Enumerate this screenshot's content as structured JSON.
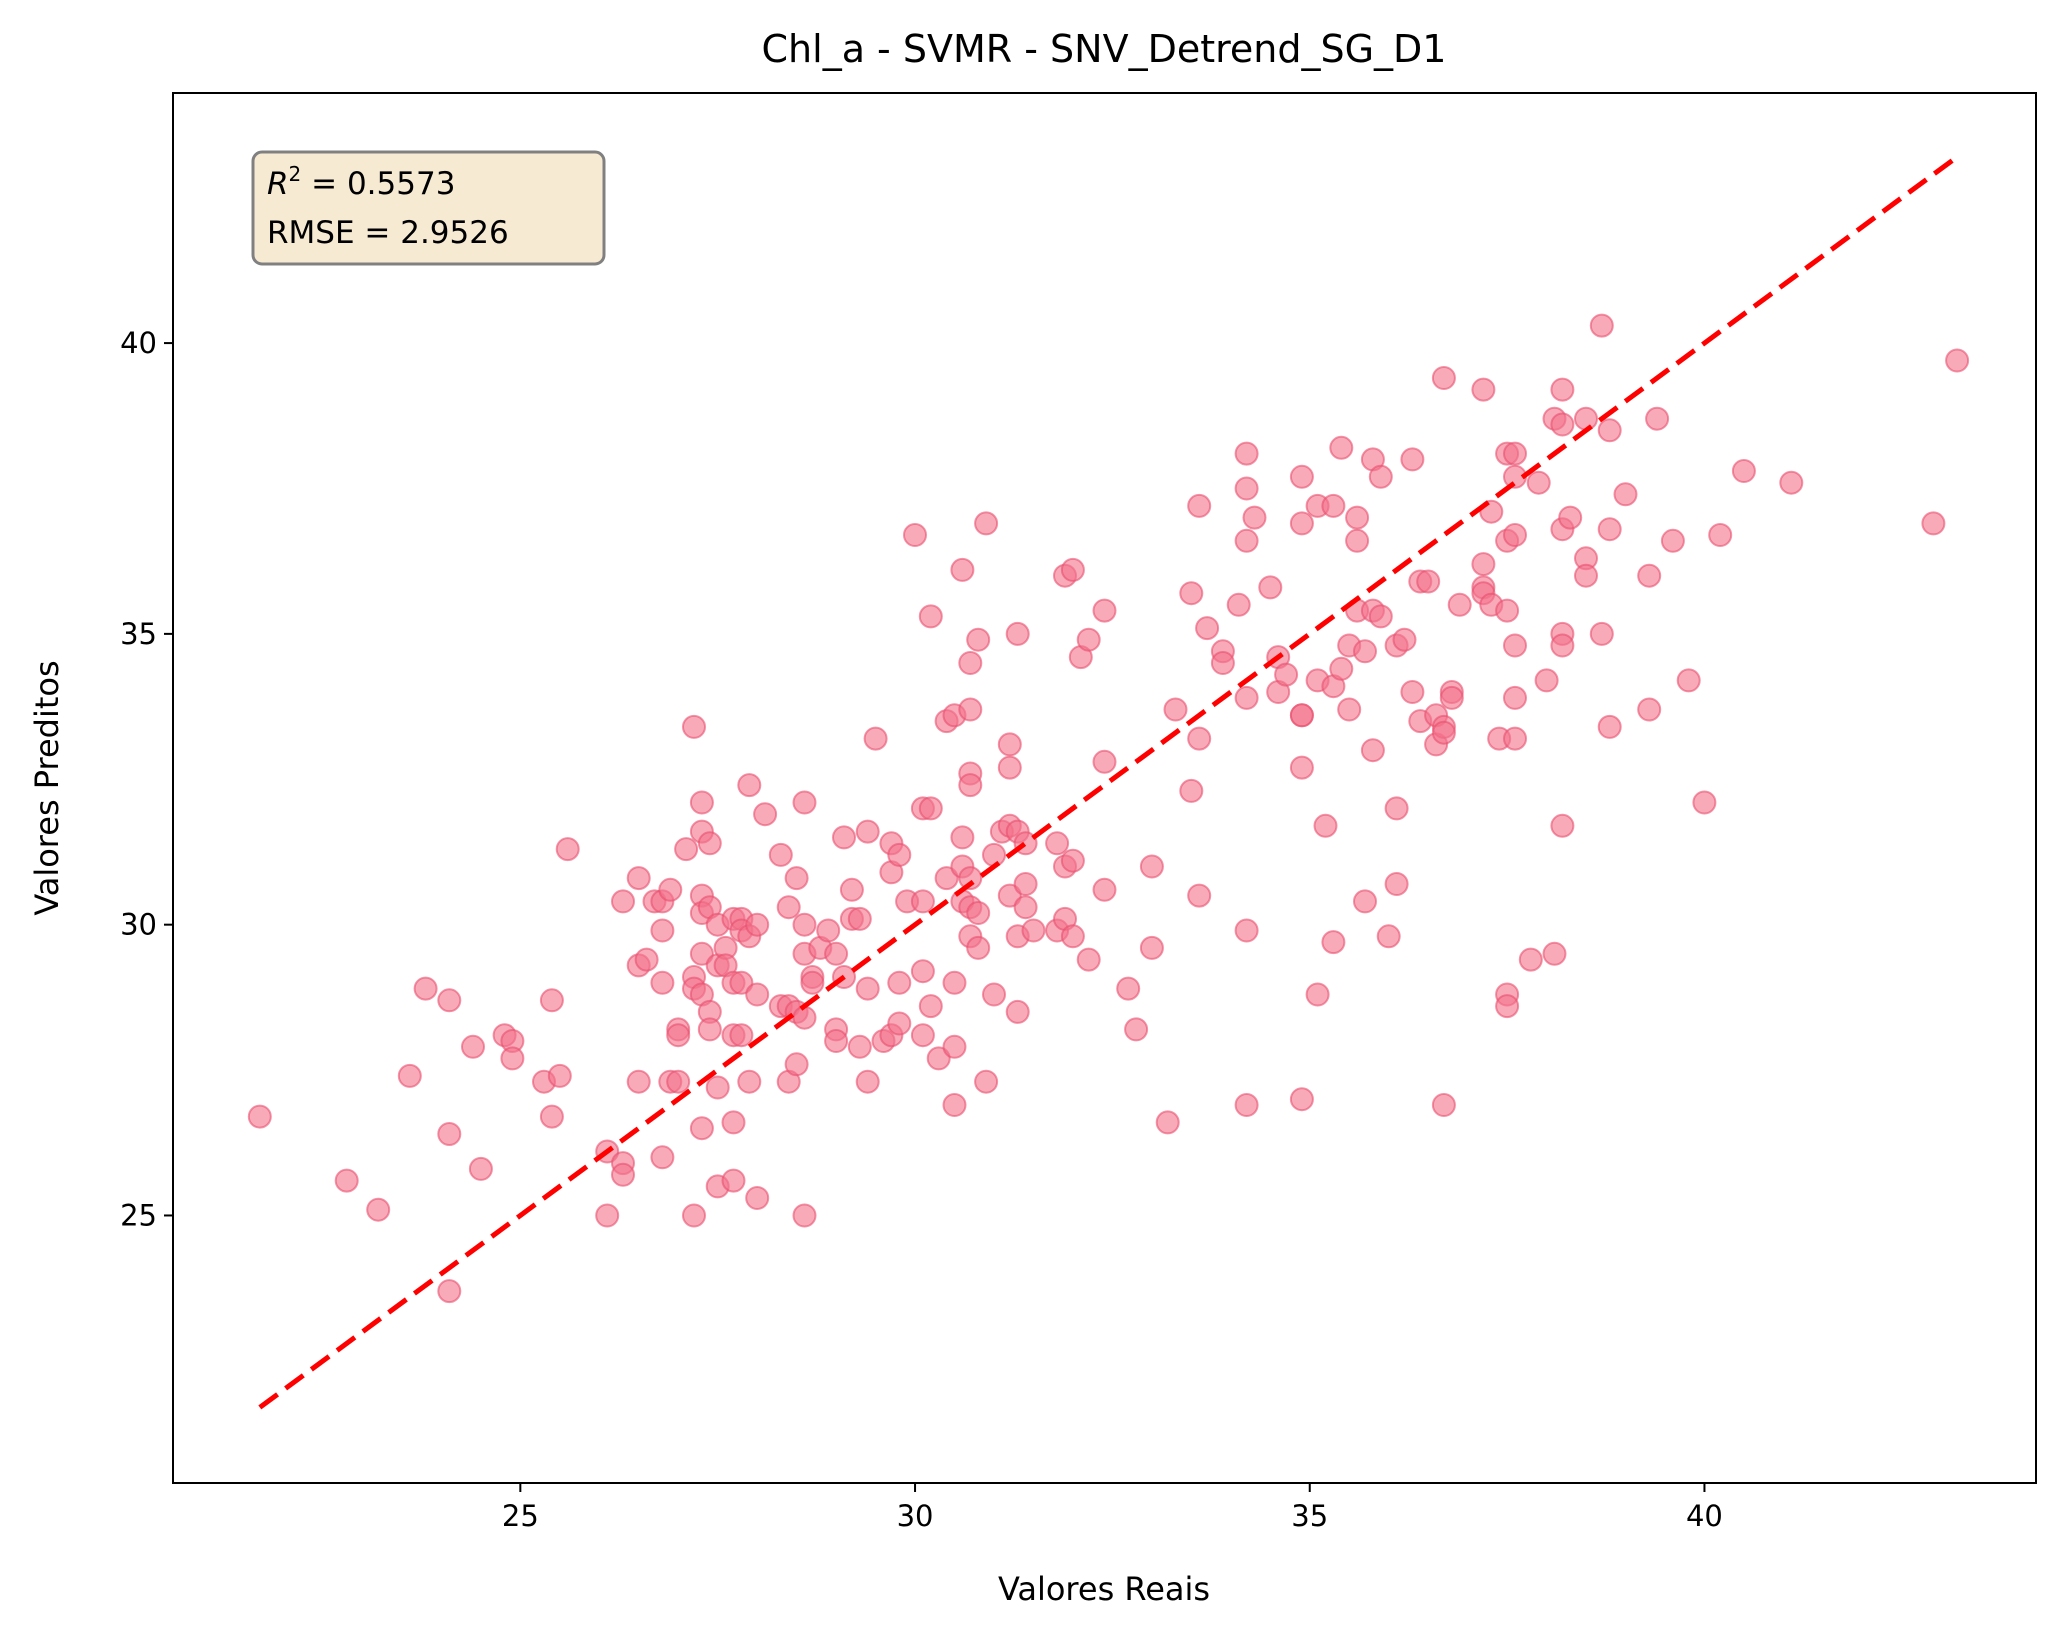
{
  "chart_data": {
    "type": "scatter",
    "title": "Chl_a - SVMR - SNV_Detrend_SG_D1",
    "xlabel": "Valores Reais",
    "ylabel": "Valores Preditos",
    "xlim": [
      20.6,
      44.2
    ],
    "ylim": [
      20.4,
      44.3
    ],
    "xticks": [
      25,
      30,
      35,
      40
    ],
    "yticks": [
      25,
      30,
      35,
      40
    ],
    "grid": false,
    "stats": {
      "r2_label": "R",
      "r2_exp": "2",
      "r2_value": " = 0.5573",
      "rmse": "RMSE = 2.9526"
    },
    "reference_line": {
      "x": [
        21.7,
        43.2
      ],
      "y": [
        21.7,
        43.2
      ],
      "color": "#ff0000",
      "style": "dashed"
    },
    "colors": {
      "points": "#f4728b",
      "points_edge": "#ea4f6e",
      "line": "#ff0000",
      "box_fill": "#f6ead3",
      "box_edge": "#808080"
    },
    "points": [
      [
        21.7,
        26.7
      ],
      [
        22.8,
        25.6
      ],
      [
        23.2,
        25.1
      ],
      [
        23.6,
        27.4
      ],
      [
        23.8,
        28.9
      ],
      [
        24.1,
        28.7
      ],
      [
        24.1,
        26.4
      ],
      [
        24.1,
        23.7
      ],
      [
        24.4,
        27.9
      ],
      [
        24.5,
        25.8
      ],
      [
        24.8,
        28.1
      ],
      [
        24.9,
        28.0
      ],
      [
        24.9,
        27.7
      ],
      [
        25.3,
        27.3
      ],
      [
        25.4,
        28.7
      ],
      [
        25.4,
        26.7
      ],
      [
        25.5,
        27.4
      ],
      [
        25.6,
        31.3
      ],
      [
        26.1,
        26.1
      ],
      [
        26.1,
        25.0
      ],
      [
        26.3,
        30.4
      ],
      [
        26.3,
        25.9
      ],
      [
        26.3,
        25.7
      ],
      [
        26.5,
        30.8
      ],
      [
        26.5,
        29.3
      ],
      [
        26.5,
        27.3
      ],
      [
        26.6,
        29.4
      ],
      [
        26.7,
        30.4
      ],
      [
        26.8,
        30.4
      ],
      [
        26.8,
        29.9
      ],
      [
        26.8,
        29.0
      ],
      [
        26.8,
        26.0
      ],
      [
        26.9,
        30.6
      ],
      [
        26.9,
        27.3
      ],
      [
        27.0,
        28.2
      ],
      [
        27.0,
        28.1
      ],
      [
        27.0,
        27.3
      ],
      [
        27.1,
        31.3
      ],
      [
        27.2,
        33.4
      ],
      [
        27.2,
        29.1
      ],
      [
        27.2,
        28.9
      ],
      [
        27.2,
        25.0
      ],
      [
        27.3,
        32.1
      ],
      [
        27.3,
        31.6
      ],
      [
        27.3,
        30.5
      ],
      [
        27.3,
        30.2
      ],
      [
        27.3,
        29.5
      ],
      [
        27.3,
        28.8
      ],
      [
        27.3,
        26.5
      ],
      [
        27.4,
        31.4
      ],
      [
        27.4,
        30.3
      ],
      [
        27.4,
        28.5
      ],
      [
        27.4,
        28.2
      ],
      [
        27.5,
        30.0
      ],
      [
        27.5,
        29.3
      ],
      [
        27.5,
        27.2
      ],
      [
        27.5,
        25.5
      ],
      [
        27.6,
        29.6
      ],
      [
        27.6,
        29.3
      ],
      [
        27.7,
        30.1
      ],
      [
        27.7,
        29.0
      ],
      [
        27.7,
        28.1
      ],
      [
        27.7,
        26.6
      ],
      [
        27.7,
        25.6
      ],
      [
        27.8,
        30.1
      ],
      [
        27.8,
        29.9
      ],
      [
        27.8,
        29.0
      ],
      [
        27.8,
        28.1
      ],
      [
        27.9,
        32.4
      ],
      [
        27.9,
        29.8
      ],
      [
        27.9,
        27.3
      ],
      [
        28.0,
        30.0
      ],
      [
        28.0,
        28.8
      ],
      [
        28.0,
        25.3
      ],
      [
        28.1,
        31.9
      ],
      [
        28.3,
        31.2
      ],
      [
        28.3,
        28.6
      ],
      [
        28.4,
        30.3
      ],
      [
        28.4,
        28.6
      ],
      [
        28.4,
        27.3
      ],
      [
        28.5,
        30.8
      ],
      [
        28.5,
        28.5
      ],
      [
        28.5,
        27.6
      ],
      [
        28.6,
        32.1
      ],
      [
        28.6,
        30.0
      ],
      [
        28.6,
        29.5
      ],
      [
        28.6,
        28.4
      ],
      [
        28.6,
        25.0
      ],
      [
        28.7,
        29.1
      ],
      [
        28.7,
        29.0
      ],
      [
        28.8,
        29.6
      ],
      [
        28.9,
        29.9
      ],
      [
        29.0,
        29.5
      ],
      [
        29.0,
        28.2
      ],
      [
        29.0,
        28.0
      ],
      [
        29.1,
        31.5
      ],
      [
        29.1,
        29.1
      ],
      [
        29.2,
        30.6
      ],
      [
        29.2,
        30.1
      ],
      [
        29.3,
        30.1
      ],
      [
        29.3,
        27.9
      ],
      [
        29.4,
        31.6
      ],
      [
        29.4,
        28.9
      ],
      [
        29.4,
        27.3
      ],
      [
        29.5,
        33.2
      ],
      [
        29.6,
        28.0
      ],
      [
        29.7,
        31.4
      ],
      [
        29.7,
        30.9
      ],
      [
        29.7,
        28.1
      ],
      [
        29.8,
        31.2
      ],
      [
        29.8,
        29.0
      ],
      [
        29.8,
        28.3
      ],
      [
        29.9,
        30.4
      ],
      [
        30.0,
        36.7
      ],
      [
        30.1,
        32.0
      ],
      [
        30.1,
        30.4
      ],
      [
        30.1,
        29.2
      ],
      [
        30.1,
        28.1
      ],
      [
        30.2,
        35.3
      ],
      [
        30.2,
        32.0
      ],
      [
        30.2,
        28.6
      ],
      [
        30.3,
        27.7
      ],
      [
        30.4,
        33.5
      ],
      [
        30.4,
        30.8
      ],
      [
        30.5,
        33.6
      ],
      [
        30.5,
        29.0
      ],
      [
        30.5,
        27.9
      ],
      [
        30.5,
        26.9
      ],
      [
        30.6,
        36.1
      ],
      [
        30.6,
        31.5
      ],
      [
        30.6,
        31.0
      ],
      [
        30.6,
        30.4
      ],
      [
        30.7,
        34.5
      ],
      [
        30.7,
        33.7
      ],
      [
        30.7,
        32.6
      ],
      [
        30.7,
        32.4
      ],
      [
        30.7,
        30.8
      ],
      [
        30.7,
        30.3
      ],
      [
        30.7,
        29.8
      ],
      [
        30.8,
        34.9
      ],
      [
        30.8,
        30.2
      ],
      [
        30.8,
        29.6
      ],
      [
        30.9,
        36.9
      ],
      [
        30.9,
        27.3
      ],
      [
        31.0,
        31.2
      ],
      [
        31.0,
        28.8
      ],
      [
        31.1,
        31.6
      ],
      [
        31.2,
        33.1
      ],
      [
        31.2,
        32.7
      ],
      [
        31.2,
        31.7
      ],
      [
        31.2,
        30.5
      ],
      [
        31.3,
        35.0
      ],
      [
        31.3,
        31.6
      ],
      [
        31.3,
        29.8
      ],
      [
        31.3,
        28.5
      ],
      [
        31.4,
        31.4
      ],
      [
        31.4,
        30.7
      ],
      [
        31.4,
        30.3
      ],
      [
        31.5,
        29.9
      ],
      [
        31.8,
        31.4
      ],
      [
        31.8,
        29.9
      ],
      [
        31.9,
        36.0
      ],
      [
        31.9,
        31.0
      ],
      [
        31.9,
        30.1
      ],
      [
        32.0,
        36.1
      ],
      [
        32.0,
        31.1
      ],
      [
        32.0,
        29.8
      ],
      [
        32.1,
        34.6
      ],
      [
        32.2,
        34.9
      ],
      [
        32.2,
        29.4
      ],
      [
        32.4,
        35.4
      ],
      [
        32.4,
        32.8
      ],
      [
        32.4,
        30.6
      ],
      [
        32.7,
        28.9
      ],
      [
        32.8,
        28.2
      ],
      [
        33.0,
        31.0
      ],
      [
        33.0,
        29.6
      ],
      [
        33.2,
        26.6
      ],
      [
        33.3,
        33.7
      ],
      [
        33.5,
        35.7
      ],
      [
        33.5,
        32.3
      ],
      [
        33.6,
        37.2
      ],
      [
        33.6,
        33.2
      ],
      [
        33.6,
        30.5
      ],
      [
        33.7,
        35.1
      ],
      [
        33.9,
        34.7
      ],
      [
        33.9,
        34.5
      ],
      [
        34.1,
        35.5
      ],
      [
        34.2,
        38.1
      ],
      [
        34.2,
        37.5
      ],
      [
        34.2,
        36.6
      ],
      [
        34.2,
        33.9
      ],
      [
        34.2,
        29.9
      ],
      [
        34.2,
        26.9
      ],
      [
        34.3,
        37.0
      ],
      [
        34.5,
        35.8
      ],
      [
        34.6,
        34.6
      ],
      [
        34.6,
        34.0
      ],
      [
        34.7,
        34.3
      ],
      [
        34.9,
        37.7
      ],
      [
        34.9,
        36.9
      ],
      [
        34.9,
        33.6
      ],
      [
        34.9,
        33.6
      ],
      [
        34.9,
        32.7
      ],
      [
        34.9,
        27.0
      ],
      [
        35.1,
        37.2
      ],
      [
        35.1,
        34.2
      ],
      [
        35.1,
        28.8
      ],
      [
        35.2,
        31.7
      ],
      [
        35.3,
        37.2
      ],
      [
        35.3,
        34.1
      ],
      [
        35.3,
        29.7
      ],
      [
        35.4,
        38.2
      ],
      [
        35.4,
        34.4
      ],
      [
        35.5,
        34.8
      ],
      [
        35.5,
        33.7
      ],
      [
        35.6,
        37.0
      ],
      [
        35.6,
        36.6
      ],
      [
        35.6,
        35.4
      ],
      [
        35.7,
        34.7
      ],
      [
        35.7,
        30.4
      ],
      [
        35.8,
        38.0
      ],
      [
        35.8,
        35.4
      ],
      [
        35.8,
        33.0
      ],
      [
        35.9,
        37.7
      ],
      [
        35.9,
        35.3
      ],
      [
        36.0,
        29.8
      ],
      [
        36.1,
        34.8
      ],
      [
        36.1,
        32.0
      ],
      [
        36.1,
        30.7
      ],
      [
        36.2,
        34.9
      ],
      [
        36.3,
        38.0
      ],
      [
        36.3,
        34.0
      ],
      [
        36.4,
        35.9
      ],
      [
        36.4,
        33.5
      ],
      [
        36.5,
        35.9
      ],
      [
        36.6,
        33.6
      ],
      [
        36.6,
        33.1
      ],
      [
        36.7,
        39.4
      ],
      [
        36.7,
        33.4
      ],
      [
        36.7,
        33.3
      ],
      [
        36.7,
        26.9
      ],
      [
        36.8,
        34.0
      ],
      [
        36.8,
        33.9
      ],
      [
        36.9,
        35.5
      ],
      [
        37.2,
        39.2
      ],
      [
        37.2,
        36.2
      ],
      [
        37.2,
        35.8
      ],
      [
        37.2,
        35.7
      ],
      [
        37.3,
        35.5
      ],
      [
        37.3,
        37.1
      ],
      [
        37.4,
        33.2
      ],
      [
        37.5,
        38.1
      ],
      [
        37.5,
        36.6
      ],
      [
        37.5,
        35.4
      ],
      [
        37.5,
        28.8
      ],
      [
        37.5,
        28.6
      ],
      [
        37.6,
        38.1
      ],
      [
        37.6,
        37.7
      ],
      [
        37.6,
        36.7
      ],
      [
        37.6,
        34.8
      ],
      [
        37.6,
        33.9
      ],
      [
        37.6,
        33.2
      ],
      [
        37.8,
        29.4
      ],
      [
        37.9,
        37.6
      ],
      [
        38.0,
        34.2
      ],
      [
        38.1,
        38.7
      ],
      [
        38.1,
        29.5
      ],
      [
        38.2,
        39.2
      ],
      [
        38.2,
        38.6
      ],
      [
        38.2,
        36.8
      ],
      [
        38.2,
        35.0
      ],
      [
        38.2,
        34.8
      ],
      [
        38.2,
        31.7
      ],
      [
        38.3,
        37.0
      ],
      [
        38.5,
        38.7
      ],
      [
        38.5,
        36.3
      ],
      [
        38.5,
        36.0
      ],
      [
        38.7,
        40.3
      ],
      [
        38.7,
        35.0
      ],
      [
        38.8,
        38.5
      ],
      [
        38.8,
        36.8
      ],
      [
        38.8,
        33.4
      ],
      [
        39.0,
        37.4
      ],
      [
        39.3,
        36.0
      ],
      [
        39.3,
        33.7
      ],
      [
        39.4,
        38.7
      ],
      [
        39.6,
        36.6
      ],
      [
        39.8,
        34.2
      ],
      [
        40.0,
        32.1
      ],
      [
        40.2,
        36.7
      ],
      [
        40.5,
        37.8
      ],
      [
        41.1,
        37.6
      ],
      [
        42.9,
        36.9
      ],
      [
        43.2,
        39.7
      ]
    ]
  }
}
